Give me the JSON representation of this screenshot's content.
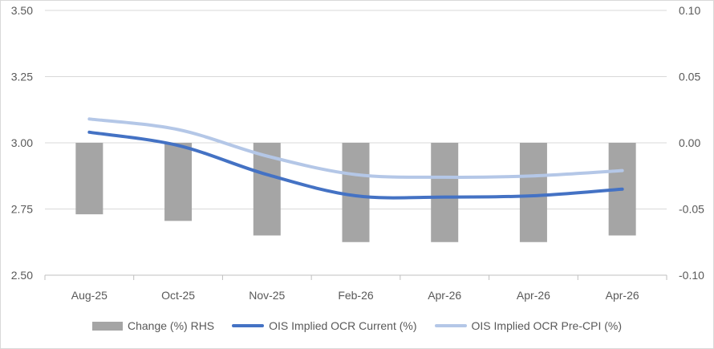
{
  "chart_data": {
    "type": "bar+line",
    "categories": [
      "Aug-25",
      "Oct-25",
      "Nov-25",
      "Feb-26",
      "Apr-26",
      "Apr-26",
      "Apr-26"
    ],
    "series": [
      {
        "name": "Change (%) RHS",
        "type": "bar",
        "axis": "right",
        "color": "#a5a5a5",
        "values": [
          -0.054,
          -0.059,
          -0.07,
          -0.075,
          -0.075,
          -0.075,
          -0.07
        ]
      },
      {
        "name": "OIS Implied OCR Current (%)",
        "type": "line",
        "axis": "left",
        "color": "#4472c4",
        "values": [
          3.04,
          2.99,
          2.88,
          2.8,
          2.795,
          2.8,
          2.825
        ]
      },
      {
        "name": "OIS Implied OCR Pre-CPI (%)",
        "type": "line",
        "axis": "left",
        "color": "#b4c7e7",
        "values": [
          3.09,
          3.05,
          2.95,
          2.88,
          2.87,
          2.875,
          2.895
        ]
      }
    ],
    "y_left": {
      "ylim": [
        2.5,
        3.5
      ],
      "ticks": [
        "2.50",
        "2.75",
        "3.00",
        "3.25",
        "3.50"
      ]
    },
    "y_right": {
      "ylim": [
        -0.1,
        0.1
      ],
      "ticks": [
        "-0.10",
        "-0.05",
        "0.00",
        "0.05",
        "0.10"
      ]
    },
    "grid": true,
    "legend_position": "bottom"
  }
}
